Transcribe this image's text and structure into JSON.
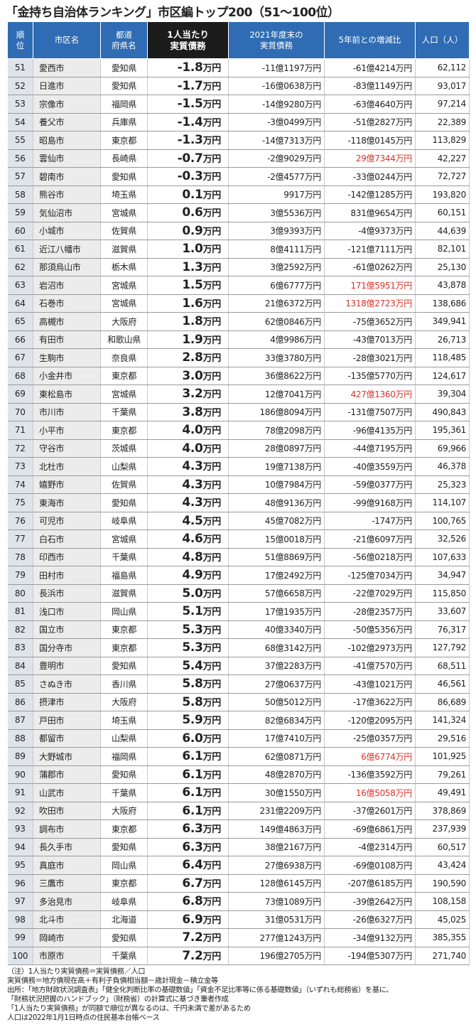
{
  "title": "「金持ち自治体ランキング」市区編トップ200（51～100位）",
  "table": {
    "header": [
      "順\n位",
      "市区名",
      "都道\n府県名",
      "1人当たり\n実質債務",
      "2021年度末の\n実質債務",
      "5年前との増減比",
      "人口（人）"
    ],
    "highlight": {
      "color": "#d8322a",
      "rows": [
        5,
        12,
        13,
        18,
        38,
        40
      ]
    },
    "rows": [
      [
        51,
        "愛西市",
        "愛知県",
        "-1.8万円",
        "-11億1197万円",
        "-61億4214万円",
        "62,112"
      ],
      [
        52,
        "日進市",
        "愛知県",
        "-1.7万円",
        "-16億0638万円",
        "-83億1149万円",
        "93,017"
      ],
      [
        53,
        "宗像市",
        "福岡県",
        "-1.5万円",
        "-14億9280万円",
        "-63億4640万円",
        "97,214"
      ],
      [
        54,
        "養父市",
        "兵庫県",
        "-1.4万円",
        "-3億0499万円",
        "-51億2827万円",
        "22,389"
      ],
      [
        55,
        "昭島市",
        "東京都",
        "-1.3万円",
        "-14億7313万円",
        "-118億0145万円",
        "113,829"
      ],
      [
        56,
        "雲仙市",
        "長崎県",
        "-0.7万円",
        "-2億9029万円",
        "29億7344万円",
        "42,227"
      ],
      [
        57,
        "碧南市",
        "愛知県",
        "-0.3万円",
        "-2億4577万円",
        "-33億0244万円",
        "72,727"
      ],
      [
        58,
        "熊谷市",
        "埼玉県",
        "0.1万円",
        "9917万円",
        "-142億1285万円",
        "193,820"
      ],
      [
        59,
        "気仙沼市",
        "宮城県",
        "0.6万円",
        "3億5536万円",
        "831億9654万円",
        "60,151"
      ],
      [
        60,
        "小城市",
        "佐賀県",
        "0.9万円",
        "3億9393万円",
        "-4億9373万円",
        "44,639"
      ],
      [
        61,
        "近江八幡市",
        "滋賀県",
        "1.0万円",
        "8億4111万円",
        "-121億7111万円",
        "82,101"
      ],
      [
        62,
        "那須烏山市",
        "栃木県",
        "1.3万円",
        "3億2592万円",
        "-61億0262万円",
        "25,130"
      ],
      [
        63,
        "岩沼市",
        "宮城県",
        "1.5万円",
        "6億6777万円",
        "171億5951万円",
        "43,878"
      ],
      [
        64,
        "石巻市",
        "宮城県",
        "1.6万円",
        "21億6372万円",
        "1318億2723万円",
        "138,686"
      ],
      [
        65,
        "高槻市",
        "大阪府",
        "1.8万円",
        "62億0846万円",
        "-75億3652万円",
        "349,941"
      ],
      [
        66,
        "有田市",
        "和歌山県",
        "1.9万円",
        "4億9986万円",
        "-43億7013万円",
        "26,713"
      ],
      [
        67,
        "生駒市",
        "奈良県",
        "2.8万円",
        "33億3780万円",
        "-28億3021万円",
        "118,485"
      ],
      [
        68,
        "小金井市",
        "東京都",
        "3.0万円",
        "36億8622万円",
        "-135億5770万円",
        "124,617"
      ],
      [
        69,
        "東松島市",
        "宮城県",
        "3.2万円",
        "12億7041万円",
        "427億1360万円",
        "39,304"
      ],
      [
        70,
        "市川市",
        "千葉県",
        "3.8万円",
        "186億8094万円",
        "-131億7507万円",
        "490,843"
      ],
      [
        71,
        "小平市",
        "東京都",
        "4.0万円",
        "78億2098万円",
        "-96億4135万円",
        "195,361"
      ],
      [
        72,
        "守谷市",
        "茨城県",
        "4.0万円",
        "28億0897万円",
        "-44億7195万円",
        "69,966"
      ],
      [
        73,
        "北杜市",
        "山梨県",
        "4.3万円",
        "19億7138万円",
        "-40億3559万円",
        "46,378"
      ],
      [
        74,
        "嬉野市",
        "佐賀県",
        "4.3万円",
        "10億7984万円",
        "-59億0377万円",
        "25,323"
      ],
      [
        75,
        "東海市",
        "愛知県",
        "4.3万円",
        "48億9136万円",
        "-99億9168万円",
        "114,107"
      ],
      [
        76,
        "可児市",
        "岐阜県",
        "4.5万円",
        "45億7082万円",
        "-1747万円",
        "100,765"
      ],
      [
        77,
        "白石市",
        "宮城県",
        "4.6万円",
        "15億0018万円",
        "-21億6097万円",
        "32,526"
      ],
      [
        78,
        "印西市",
        "千葉県",
        "4.8万円",
        "51億8869万円",
        "-56億0218万円",
        "107,633"
      ],
      [
        79,
        "田村市",
        "福島県",
        "4.9万円",
        "17億2492万円",
        "-125億7034万円",
        "34,947"
      ],
      [
        80,
        "長浜市",
        "滋賀県",
        "5.0万円",
        "57億6658万円",
        "-22億7029万円",
        "115,850"
      ],
      [
        81,
        "浅口市",
        "岡山県",
        "5.1万円",
        "17億1935万円",
        "-28億2357万円",
        "33,607"
      ],
      [
        82,
        "国立市",
        "東京都",
        "5.3万円",
        "40億3340万円",
        "-50億5356万円",
        "76,317"
      ],
      [
        83,
        "国分寺市",
        "東京都",
        "5.3万円",
        "68億3142万円",
        "-102億2973万円",
        "127,792"
      ],
      [
        84,
        "豊明市",
        "愛知県",
        "5.4万円",
        "37億2283万円",
        "-41億7570万円",
        "68,511"
      ],
      [
        85,
        "さぬき市",
        "香川県",
        "5.8万円",
        "27億0637万円",
        "-43億1021万円",
        "46,561"
      ],
      [
        86,
        "摂津市",
        "大阪府",
        "5.8万円",
        "50億5012万円",
        "-17億3622万円",
        "86,689"
      ],
      [
        87,
        "戸田市",
        "埼玉県",
        "5.9万円",
        "82億6834万円",
        "-120億2095万円",
        "141,324"
      ],
      [
        88,
        "都留市",
        "山梨県",
        "6.0万円",
        "17億7410万円",
        "-25億0357万円",
        "29,516"
      ],
      [
        89,
        "大野城市",
        "福岡県",
        "6.1万円",
        "62億0871万円",
        "6億6774万円",
        "101,925"
      ],
      [
        90,
        "蒲郡市",
        "愛知県",
        "6.1万円",
        "48億2870万円",
        "-136億3592万円",
        "79,261"
      ],
      [
        91,
        "山武市",
        "千葉県",
        "6.1万円",
        "30億1550万円",
        "16億5058万円",
        "49,491"
      ],
      [
        92,
        "吹田市",
        "大阪府",
        "6.1万円",
        "231億2209万円",
        "-37億2601万円",
        "378,869"
      ],
      [
        93,
        "調布市",
        "東京都",
        "6.3万円",
        "149億4863万円",
        "-69億6861万円",
        "237,939"
      ],
      [
        94,
        "長久手市",
        "愛知県",
        "6.3万円",
        "38億2167万円",
        "-4億2314万円",
        "60,517"
      ],
      [
        95,
        "真庭市",
        "岡山県",
        "6.4万円",
        "27億6938万円",
        "-69億0108万円",
        "43,424"
      ],
      [
        96,
        "三鷹市",
        "東京都",
        "6.7万円",
        "128億6145万円",
        "-207億6185万円",
        "190,590"
      ],
      [
        97,
        "多治見市",
        "岐阜県",
        "6.8万円",
        "73億1089万円",
        "-39億2642万円",
        "108,158"
      ],
      [
        98,
        "北斗市",
        "北海道",
        "6.9万円",
        "31億0531万円",
        "-26億6327万円",
        "45,025"
      ],
      [
        99,
        "岡崎市",
        "愛知県",
        "7.2万円",
        "277億1243万円",
        "-34億9132万円",
        "385,355"
      ],
      [
        100,
        "市原市",
        "千葉県",
        "7.2万円",
        "196億2705万円",
        "-194億5307万円",
        "271,740"
      ]
    ]
  },
  "notes": [
    "（注）1人当たり実質債務＝実質債務／人口",
    "実質債務＝地方債現在高＋有利子負債相当額－歳計現金－積立金等",
    "出所：「地方財政状況調査表」「健全化判断比率の基礎数値」「資金不足比率等に係る基礎数値」（いずれも総務省）を基に、",
    "「財務状況把握のハンドブック」（財務省）の計算式に基づき筆者作成",
    "「1人当たり実質債務」が同額で順位が異なるのは、千円未満で差があるため",
    "人口は2022年1月1日時点の住民基本台帳ベース"
  ]
}
